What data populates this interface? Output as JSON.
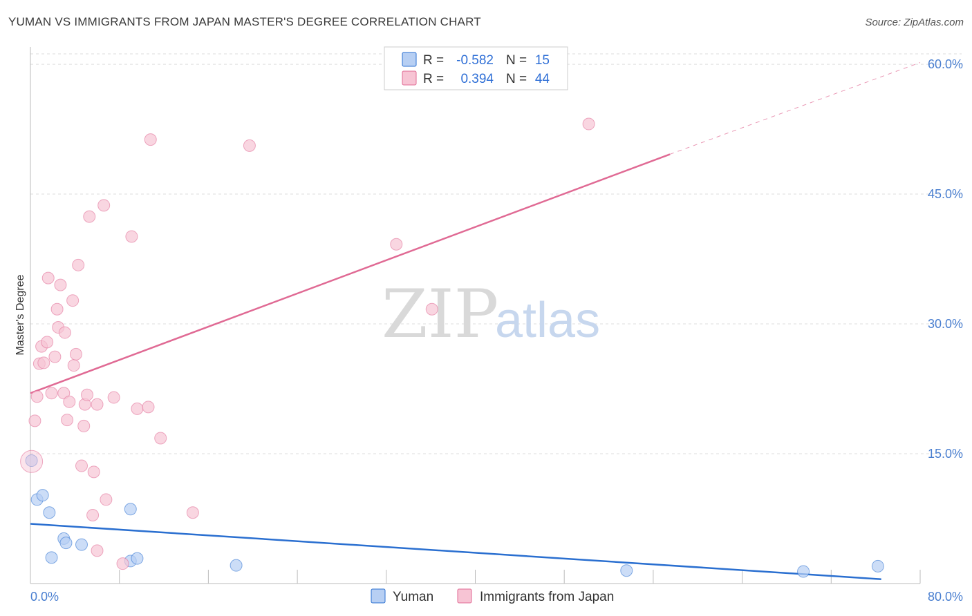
{
  "header": {
    "title": "YUMAN VS IMMIGRANTS FROM JAPAN MASTER'S DEGREE CORRELATION CHART",
    "source": "Source: ZipAtlas.com"
  },
  "watermark": {
    "zip": "ZIP",
    "atlas": "atlas"
  },
  "colors": {
    "yuman": "#2a6fd0",
    "yuman_fill": "#b7cff3",
    "japan": "#e06a94",
    "japan_fill": "#f7c4d4",
    "grid": "#dddddd",
    "axis_label": "#4a7fd0"
  },
  "legend": {
    "rows": [
      {
        "series": "yuman",
        "r_label": "R =",
        "r_value": "-0.582",
        "n_label": "N =",
        "n_value": "15"
      },
      {
        "series": "japan",
        "r_label": "R =",
        "r_value": "0.394",
        "n_label": "N =",
        "n_value": "44"
      }
    ]
  },
  "chart_data": {
    "type": "scatter",
    "title": "YUMAN VS IMMIGRANTS FROM JAPAN MASTER'S DEGREE CORRELATION CHART",
    "xlabel": "",
    "ylabel": "Master's Degree",
    "xlim": [
      0,
      80
    ],
    "ylim": [
      0,
      62
    ],
    "x_tick_labels": [
      "0.0%",
      "80.0%"
    ],
    "y_ticks": [
      15,
      30,
      45,
      60
    ],
    "y_tick_labels": [
      "15.0%",
      "30.0%",
      "45.0%",
      "60.0%"
    ],
    "grid": true,
    "legend_position": "top-center",
    "series": [
      {
        "name": "Yuman",
        "key": "yuman",
        "r": -0.582,
        "n": 15,
        "points": [
          [
            0.1,
            14.2
          ],
          [
            0.6,
            9.7
          ],
          [
            1.1,
            10.2
          ],
          [
            1.7,
            8.2
          ],
          [
            1.9,
            3.0
          ],
          [
            3.0,
            5.2
          ],
          [
            3.2,
            4.7
          ],
          [
            4.6,
            4.5
          ],
          [
            9.0,
            8.6
          ],
          [
            9.0,
            2.6
          ],
          [
            9.6,
            2.9
          ],
          [
            18.5,
            2.1
          ],
          [
            53.6,
            1.5
          ],
          [
            69.5,
            1.4
          ],
          [
            76.2,
            2.0
          ]
        ],
        "trend": {
          "x": [
            0,
            76.5
          ],
          "y": [
            6.9,
            0.5
          ],
          "dashed_to": null
        }
      },
      {
        "name": "Immigrants from Japan",
        "key": "japan",
        "r": 0.394,
        "n": 44,
        "points": [
          [
            0.1,
            14.1
          ],
          [
            0.4,
            18.8
          ],
          [
            0.6,
            21.6
          ],
          [
            0.8,
            25.4
          ],
          [
            1.0,
            27.4
          ],
          [
            1.2,
            25.5
          ],
          [
            1.5,
            27.9
          ],
          [
            1.6,
            35.3
          ],
          [
            1.9,
            22.0
          ],
          [
            2.2,
            26.2
          ],
          [
            2.4,
            31.7
          ],
          [
            2.5,
            29.6
          ],
          [
            2.7,
            34.5
          ],
          [
            3.0,
            22.0
          ],
          [
            3.1,
            29.0
          ],
          [
            3.3,
            18.9
          ],
          [
            3.5,
            21.0
          ],
          [
            3.8,
            32.7
          ],
          [
            3.9,
            25.2
          ],
          [
            4.1,
            26.5
          ],
          [
            4.3,
            36.8
          ],
          [
            4.6,
            13.6
          ],
          [
            4.8,
            18.2
          ],
          [
            4.9,
            20.7
          ],
          [
            5.1,
            21.8
          ],
          [
            5.3,
            42.4
          ],
          [
            5.6,
            7.9
          ],
          [
            5.7,
            12.9
          ],
          [
            6.0,
            20.7
          ],
          [
            6.0,
            3.8
          ],
          [
            6.6,
            43.7
          ],
          [
            6.8,
            9.7
          ],
          [
            7.5,
            21.5
          ],
          [
            8.3,
            2.3
          ],
          [
            9.1,
            40.1
          ],
          [
            9.6,
            20.2
          ],
          [
            10.6,
            20.4
          ],
          [
            10.8,
            51.3
          ],
          [
            11.7,
            16.8
          ],
          [
            14.6,
            8.2
          ],
          [
            19.7,
            50.6
          ],
          [
            32.9,
            39.2
          ],
          [
            36.1,
            31.7
          ],
          [
            50.2,
            53.1
          ]
        ],
        "trend": {
          "x": [
            0,
            57.5
          ],
          "y": [
            22.0,
            49.6
          ],
          "dashed_to": [
            80,
            60.2
          ]
        }
      }
    ]
  },
  "bottom_legend": {
    "items": [
      {
        "series": "yuman",
        "label": "Yuman"
      },
      {
        "series": "japan",
        "label": "Immigrants from Japan"
      }
    ]
  }
}
